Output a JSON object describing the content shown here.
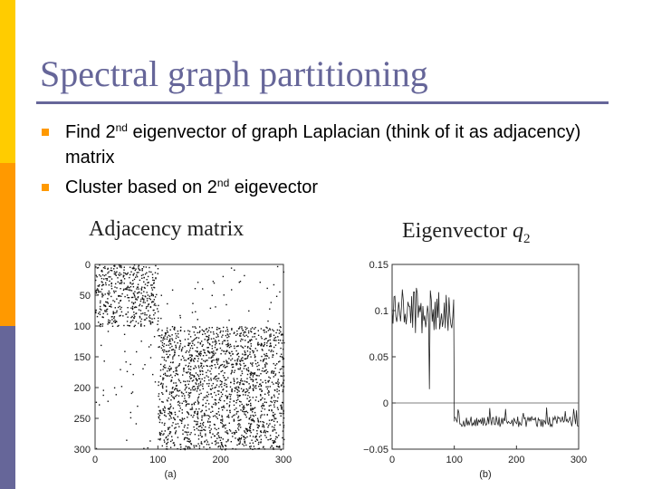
{
  "slide": {
    "title": "Spectral graph partitioning",
    "bullets": [
      {
        "pre": "Find 2",
        "sup": "nd",
        "post": " eigenvector of graph Laplacian (think of it as adjacency) matrix"
      },
      {
        "pre": "Cluster based on 2",
        "sup": "nd",
        "post": " eigevector"
      }
    ],
    "colors": {
      "accent": "#666699",
      "bullet": "#ff9900",
      "bar_top": "#ffcc00",
      "bar_mid": "#ff9900",
      "bar_bottom": "#666699"
    }
  },
  "chart_data": [
    {
      "type": "heatmap",
      "title": "Adjacency matrix",
      "caption": "(a)",
      "y_ticks": [
        "0",
        "50",
        "100",
        "150",
        "200",
        "250",
        "300"
      ],
      "x_ticks": [
        "0",
        "100",
        "200",
        "300"
      ],
      "xlim": [
        0,
        300
      ],
      "ylim": [
        0,
        300
      ],
      "blocks": [
        {
          "rows": [
            0,
            100
          ],
          "cols": [
            0,
            100
          ],
          "density": "dense"
        },
        {
          "rows": [
            100,
            300
          ],
          "cols": [
            100,
            300
          ],
          "density": "dense"
        },
        {
          "rows": [
            0,
            100
          ],
          "cols": [
            100,
            300
          ],
          "density": "sparse"
        },
        {
          "rows": [
            100,
            300
          ],
          "cols": [
            0,
            100
          ],
          "density": "sparse"
        }
      ]
    },
    {
      "type": "line",
      "title": "Eigenvector",
      "title_symbol": "q",
      "title_subscript": "2",
      "caption": "(b)",
      "y_ticks": [
        "0.15",
        "0.1",
        "0.05",
        "0",
        "−0.05"
      ],
      "x_ticks": [
        "0",
        "100",
        "200",
        "300"
      ],
      "xlim": [
        0,
        300
      ],
      "ylim": [
        -0.05,
        0.15
      ],
      "zero_line": true,
      "segments": [
        {
          "x": [
            0,
            100
          ],
          "level": 0.1,
          "spike": {
            "x": 60,
            "y": 0.015
          }
        },
        {
          "x": [
            100,
            300
          ],
          "level": -0.02
        }
      ]
    }
  ]
}
